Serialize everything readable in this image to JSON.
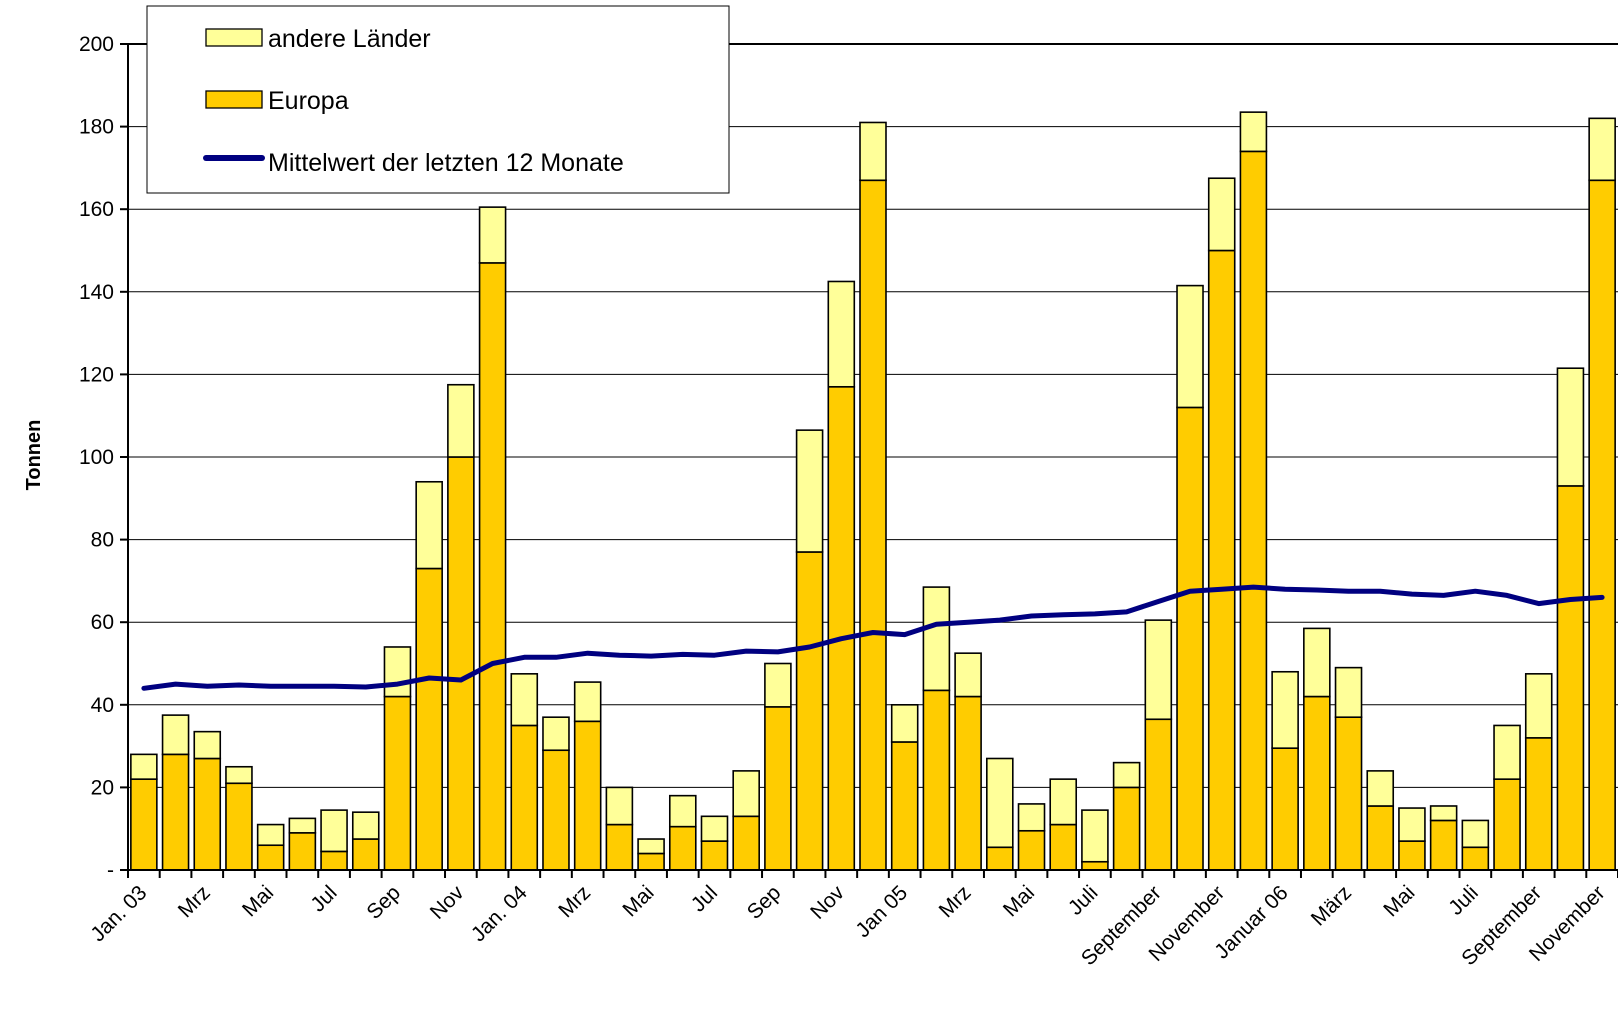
{
  "chart_data": {
    "type": "bar",
    "stacked": true,
    "ylabel": "Tonnen",
    "ylim": [
      0,
      200
    ],
    "yticks": [
      0,
      20,
      40,
      60,
      80,
      100,
      120,
      140,
      160,
      180,
      200
    ],
    "ytick_labels": [
      "-",
      "20",
      "40",
      "60",
      "80",
      "100",
      "120",
      "140",
      "160",
      "180",
      "200"
    ],
    "grid": true,
    "legend_position": "top-left",
    "x_labels": [
      "Jan. 03",
      "Mrz",
      "Mai",
      "Jul",
      "Sep",
      "Nov",
      "Jan. 04",
      "Mrz",
      "Mai",
      "Jul",
      "Sep",
      "Nov",
      "Jan 05",
      "Mrz",
      "Mai",
      "Juli",
      "September",
      "November",
      "Januar 06",
      "März",
      "Mai",
      "Juli",
      "September",
      "November"
    ],
    "x_label_every": 2,
    "series": [
      {
        "name": "Europa",
        "color": "#FFCC00",
        "values": [
          22,
          28,
          27,
          21,
          6,
          9,
          4.5,
          7.5,
          42,
          73,
          100,
          147,
          35,
          29,
          36,
          11,
          4,
          10.5,
          7,
          13,
          39.5,
          77,
          117,
          167,
          31,
          43.5,
          42,
          5.5,
          9.5,
          11,
          2,
          20,
          36.5,
          112,
          150,
          174,
          29.5,
          42,
          37,
          15.5,
          7,
          12,
          5.5,
          22,
          32,
          93,
          167
        ]
      },
      {
        "name": "andere Länder",
        "color": "#FFFF99",
        "values": [
          6,
          9.5,
          6.5,
          4,
          5,
          3.5,
          10,
          6.5,
          12,
          21,
          17.5,
          13.5,
          12.5,
          8,
          9.5,
          9,
          3.5,
          7.5,
          6,
          11,
          10.5,
          29.5,
          25.5,
          14,
          9,
          25,
          10.5,
          21.5,
          6.5,
          11,
          12.5,
          6,
          24,
          29.5,
          17.5,
          9.5,
          18.5,
          16.5,
          12,
          8.5,
          8,
          3.5,
          6.5,
          13,
          15.5,
          28.5,
          15
        ]
      }
    ],
    "line_series": {
      "name": "Mittelwert der letzten 12 Monate",
      "color": "#000080",
      "values": [
        44,
        45,
        44.5,
        44.8,
        44.5,
        44.5,
        44.5,
        44.3,
        45,
        46.5,
        46,
        50,
        51.5,
        51.5,
        52.5,
        52,
        51.8,
        52.2,
        52,
        53,
        52.8,
        54,
        56,
        57.5,
        57,
        59.5,
        60,
        60.5,
        61.5,
        61.8,
        62,
        62.5,
        65,
        67.5,
        68,
        68.5,
        68,
        67.8,
        67.5,
        67.5,
        66.8,
        66.5,
        67.5,
        66.5,
        64.5,
        65.5,
        66
      ]
    }
  }
}
